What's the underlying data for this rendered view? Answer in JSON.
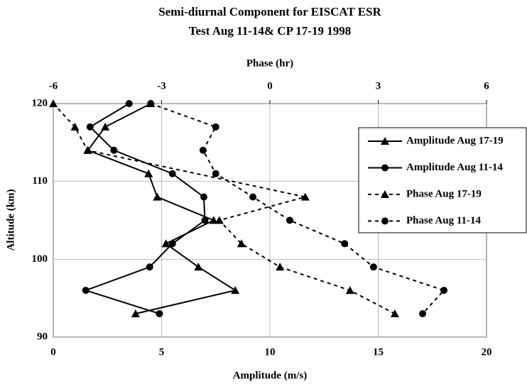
{
  "chart_data": {
    "type": "line",
    "title": "Semi-diurnal Component for EISCAT ESR",
    "subtitle": "Test  Aug 11-14&  CP 17-19 1998",
    "x_label": "Amplitude (m/s)",
    "x2_label": "Phase (hr)",
    "y_label": "Altitude (km)",
    "xlim": [
      0,
      20
    ],
    "xticks": [
      0,
      5,
      10,
      15,
      20
    ],
    "x2lim": [
      -6,
      6
    ],
    "x2ticks": [
      -6,
      -3,
      0,
      3,
      6
    ],
    "ylim": [
      90,
      120
    ],
    "yticks": [
      90,
      100,
      110,
      120
    ],
    "grid": true,
    "legend": "right",
    "series": [
      {
        "name": "Amplitude Aug 17-19",
        "color": "#000000",
        "marker": "triangle",
        "dash": false,
        "x": [
          4.5,
          2.4,
          1.6,
          4.4,
          4.8,
          7.4,
          5.2,
          6.7,
          8.4,
          3.8
        ],
        "y": [
          120,
          117,
          114,
          111,
          108,
          105,
          102,
          99,
          96,
          93
        ]
      },
      {
        "name": "Amplitude Aug 11-14",
        "color": "#000000",
        "marker": "circle",
        "dash": false,
        "x": [
          3.5,
          1.7,
          2.8,
          5.5,
          6.95,
          7.0,
          5.5,
          4.45,
          1.5,
          4.9
        ],
        "y": [
          120,
          117,
          114,
          111,
          108,
          105,
          102,
          99,
          96,
          93
        ]
      },
      {
        "name": "Phase Aug 17-19",
        "color": "#000000",
        "marker": "triangle",
        "dash": true,
        "axis": "x2",
        "x": [
          -6,
          -5.4,
          -5.05,
          0.98,
          -1.4,
          -0.79,
          0.28,
          2.22,
          3.46
        ],
        "y": [
          120,
          117,
          114,
          108,
          105,
          102,
          99,
          96,
          93
        ]
      },
      {
        "name": "Phase Aug 11-14",
        "color": "#000000",
        "marker": "circle",
        "dash": true,
        "axis": "x2",
        "x": [
          -3.3,
          -1.5,
          -1.85,
          -1.5,
          -0.47,
          0.55,
          2.07,
          2.87,
          4.82,
          4.23
        ],
        "y": [
          120,
          117,
          114,
          111,
          108,
          105,
          102,
          99,
          96,
          93
        ]
      }
    ]
  }
}
